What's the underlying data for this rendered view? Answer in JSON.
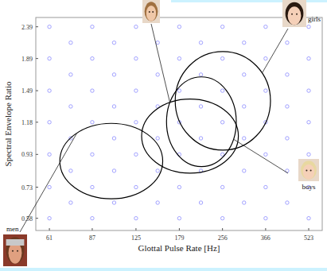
{
  "chart_data": {
    "type": "scatter",
    "x_label": "Glottal Pulse Rate [Hz]",
    "y_label": "Spectral Envelope Ratio",
    "log": true,
    "grid": false,
    "xlim": [
      54.5,
      585
    ],
    "ylim": [
      0.53,
      2.56
    ],
    "xticks": [
      61,
      87,
      125,
      179,
      256,
      366,
      523
    ],
    "yticks": [
      0.58,
      0.73,
      0.93,
      1.18,
      1.49,
      1.89,
      2.39
    ],
    "series": [
      {
        "color": "#8c8cff",
        "marker": "circle",
        "x": [
          61,
          87,
          125,
          179,
          256,
          366,
          523,
          61,
          87,
          125,
          179,
          256,
          366,
          523,
          61,
          87,
          125,
          179,
          256,
          366,
          523,
          61,
          87,
          125,
          179,
          256,
          366,
          523,
          61,
          87,
          125,
          179,
          256,
          366,
          523,
          61,
          87,
          125,
          179,
          256,
          366,
          523,
          61,
          87,
          125,
          179,
          256,
          366,
          523,
          72.8,
          104.3,
          149.6,
          214.1,
          306.1,
          437.5,
          72.8,
          104.3,
          149.6,
          214.1,
          306.1,
          437.5,
          72.8,
          104.3,
          149.6,
          214.1,
          306.1,
          437.5,
          72.8,
          104.3,
          149.6,
          214.1,
          306.1,
          437.5,
          72.8,
          104.3,
          149.6,
          214.1,
          306.1,
          437.5,
          72.8,
          104.3,
          149.6,
          214.1,
          306.1,
          437.5
        ],
        "values": [
          0.58,
          0.58,
          0.58,
          0.58,
          0.58,
          0.58,
          0.58,
          0.73,
          0.73,
          0.73,
          0.73,
          0.73,
          0.73,
          0.73,
          0.93,
          0.93,
          0.93,
          0.93,
          0.93,
          0.93,
          0.93,
          1.18,
          1.18,
          1.18,
          1.18,
          1.18,
          1.18,
          1.18,
          1.49,
          1.49,
          1.49,
          1.49,
          1.49,
          1.49,
          1.49,
          1.89,
          1.89,
          1.89,
          1.89,
          1.89,
          1.89,
          1.89,
          2.39,
          2.39,
          2.39,
          2.39,
          2.39,
          2.39,
          2.39,
          0.651,
          0.651,
          0.651,
          0.651,
          0.651,
          0.651,
          0.824,
          0.824,
          0.824,
          0.824,
          0.824,
          0.824,
          1.048,
          1.048,
          1.048,
          1.048,
          1.048,
          1.048,
          1.326,
          1.326,
          1.326,
          1.326,
          1.326,
          1.326,
          1.678,
          1.678,
          1.678,
          1.678,
          1.678,
          1.678,
          2.125,
          2.125,
          2.125,
          2.125,
          2.125,
          2.125
        ]
      }
    ],
    "regions": [
      {
        "label": "men",
        "color": "#000000",
        "x_range": [
          66.5,
          156
        ],
        "y_range": [
          0.67,
          1.17
        ]
      },
      {
        "color": "#000000",
        "x_range": [
          131,
          292
        ],
        "y_range": [
          0.81,
          1.4
        ]
      },
      {
        "label": "boys",
        "color": "#000000",
        "x_range": [
          161,
          287
        ],
        "y_range": [
          0.85,
          1.65
        ]
      },
      {
        "label": "girls",
        "color": "#000000",
        "x_range": [
          173,
          381
        ],
        "y_range": [
          0.96,
          1.99
        ]
      }
    ]
  }
}
